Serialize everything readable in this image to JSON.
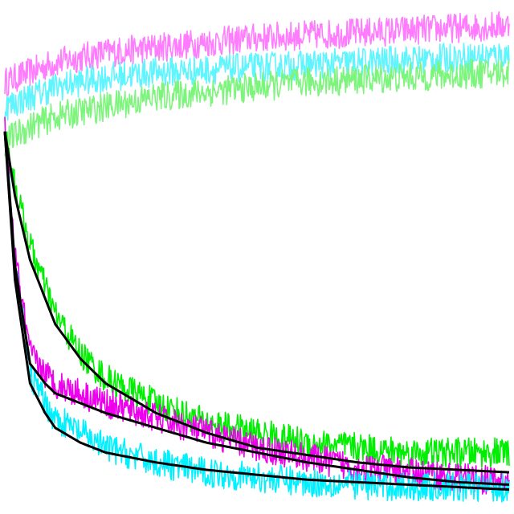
{
  "chart_data": {
    "type": "line",
    "title": "",
    "xlabel": "",
    "ylabel": "",
    "grid": false,
    "legend": "none",
    "xlim": [
      0,
      1
    ],
    "ylim": [
      0,
      1
    ],
    "series": [
      {
        "color": "#ff7cff",
        "role": "noisy-band",
        "x": [
          0,
          0.05,
          0.1,
          0.2,
          0.3,
          0.4,
          0.5,
          0.6,
          0.7,
          0.8,
          0.9,
          1.0
        ],
        "y": [
          0.85,
          0.87,
          0.89,
          0.91,
          0.92,
          0.93,
          0.94,
          0.945,
          0.95,
          0.955,
          0.96,
          0.965
        ]
      },
      {
        "color": "#5ef5ff",
        "role": "noisy-band",
        "x": [
          0,
          0.05,
          0.1,
          0.2,
          0.3,
          0.4,
          0.5,
          0.6,
          0.7,
          0.8,
          0.9,
          1.0
        ],
        "y": [
          0.8,
          0.82,
          0.84,
          0.86,
          0.87,
          0.875,
          0.88,
          0.885,
          0.89,
          0.895,
          0.9,
          0.905
        ]
      },
      {
        "color": "#7df57d",
        "role": "noisy-band",
        "x": [
          0,
          0.05,
          0.1,
          0.2,
          0.3,
          0.4,
          0.5,
          0.6,
          0.7,
          0.8,
          0.9,
          1.0
        ],
        "y": [
          0.73,
          0.76,
          0.78,
          0.8,
          0.82,
          0.83,
          0.84,
          0.85,
          0.855,
          0.86,
          0.865,
          0.87
        ]
      },
      {
        "color": "#00ee00",
        "role": "noisy-band",
        "x": [
          0,
          0.02,
          0.05,
          0.1,
          0.15,
          0.2,
          0.3,
          0.4,
          0.5,
          0.6,
          0.7,
          0.8,
          0.9,
          1.0
        ],
        "y": [
          0.75,
          0.64,
          0.52,
          0.38,
          0.3,
          0.25,
          0.2,
          0.16,
          0.14,
          0.12,
          0.11,
          0.1,
          0.1,
          0.1
        ]
      },
      {
        "color": "#ee00ee",
        "role": "noisy-band",
        "x": [
          0,
          0.02,
          0.05,
          0.08,
          0.1,
          0.15,
          0.2,
          0.3,
          0.4,
          0.5,
          0.6,
          0.7,
          0.8,
          0.9,
          1.0
        ],
        "y": [
          0.75,
          0.5,
          0.3,
          0.26,
          0.24,
          0.22,
          0.2,
          0.17,
          0.14,
          0.11,
          0.09,
          0.07,
          0.06,
          0.05,
          0.04
        ]
      },
      {
        "color": "#00f0ff",
        "role": "noisy-band",
        "x": [
          0,
          0.02,
          0.05,
          0.08,
          0.1,
          0.15,
          0.2,
          0.3,
          0.4,
          0.5,
          0.6,
          0.7,
          0.8,
          0.9,
          1.0
        ],
        "y": [
          0.75,
          0.48,
          0.26,
          0.2,
          0.17,
          0.14,
          0.11,
          0.08,
          0.06,
          0.05,
          0.04,
          0.035,
          0.03,
          0.03,
          0.03
        ]
      },
      {
        "color": "#000000",
        "role": "fit-line",
        "x": [
          0,
          0.02,
          0.05,
          0.1,
          0.15,
          0.2,
          0.3,
          0.4,
          0.5,
          0.6,
          0.7,
          0.8,
          0.9,
          1.0
        ],
        "y": [
          0.75,
          0.62,
          0.49,
          0.36,
          0.29,
          0.24,
          0.18,
          0.14,
          0.11,
          0.095,
          0.08,
          0.07,
          0.065,
          0.06
        ]
      },
      {
        "color": "#000000",
        "role": "fit-line",
        "x": [
          0,
          0.02,
          0.05,
          0.08,
          0.1,
          0.15,
          0.2,
          0.3,
          0.4,
          0.5,
          0.6,
          0.7,
          0.8,
          0.9,
          1.0
        ],
        "y": [
          0.75,
          0.48,
          0.28,
          0.24,
          0.22,
          0.2,
          0.18,
          0.15,
          0.12,
          0.1,
          0.08,
          0.065,
          0.05,
          0.04,
          0.035
        ]
      },
      {
        "color": "#000000",
        "role": "fit-line",
        "x": [
          0,
          0.02,
          0.05,
          0.08,
          0.1,
          0.15,
          0.2,
          0.3,
          0.4,
          0.5,
          0.6,
          0.7,
          0.8,
          0.9,
          1.0
        ],
        "y": [
          0.75,
          0.45,
          0.24,
          0.18,
          0.15,
          0.12,
          0.1,
          0.08,
          0.065,
          0.055,
          0.045,
          0.04,
          0.035,
          0.03,
          0.025
        ]
      }
    ]
  }
}
